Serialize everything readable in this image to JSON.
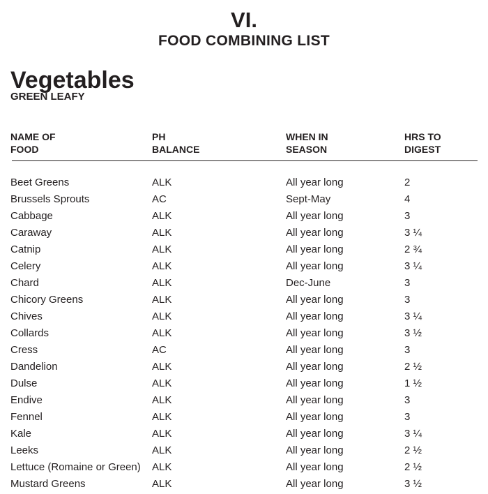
{
  "chapter": "VI.",
  "title": "FOOD COMBINING LIST",
  "section": "Vegetables",
  "subsection": "GREEN LEAFY",
  "columns": {
    "name": [
      "NAME OF",
      "FOOD"
    ],
    "ph": [
      "PH",
      "BALANCE"
    ],
    "season": [
      "WHEN IN",
      "SEASON"
    ],
    "digest": [
      "HRS TO",
      "DIGEST"
    ]
  },
  "rows": [
    {
      "name": "Beet Greens",
      "ph": "ALK",
      "season": "All year long",
      "digest": "2"
    },
    {
      "name": "Brussels Sprouts",
      "ph": "AC",
      "season": "Sept-May",
      "digest": "4"
    },
    {
      "name": "Cabbage",
      "ph": "ALK",
      "season": "All year long",
      "digest": "3"
    },
    {
      "name": "Caraway",
      "ph": "ALK",
      "season": "All year long",
      "digest": "3 ¼"
    },
    {
      "name": "Catnip",
      "ph": "ALK",
      "season": "All year long",
      "digest": "2 ¾"
    },
    {
      "name": "Celery",
      "ph": "ALK",
      "season": "All year long",
      "digest": "3 ¼"
    },
    {
      "name": "Chard",
      "ph": "ALK",
      "season": "Dec-June",
      "digest": "3"
    },
    {
      "name": "Chicory Greens",
      "ph": "ALK",
      "season": "All year long",
      "digest": "3"
    },
    {
      "name": "Chives",
      "ph": "ALK",
      "season": "All year long",
      "digest": "3 ¼"
    },
    {
      "name": "Collards",
      "ph": "ALK",
      "season": "All year long",
      "digest": "3 ½"
    },
    {
      "name": "Cress",
      "ph": "AC",
      "season": "All year long",
      "digest": "3"
    },
    {
      "name": "Dandelion",
      "ph": "ALK",
      "season": "All year long",
      "digest": "2 ½"
    },
    {
      "name": "Dulse",
      "ph": "ALK",
      "season": "All year long",
      "digest": "1 ½"
    },
    {
      "name": "Endive",
      "ph": "ALK",
      "season": "All year long",
      "digest": "3"
    },
    {
      "name": "Fennel",
      "ph": "ALK",
      "season": "All year long",
      "digest": "3"
    },
    {
      "name": "Kale",
      "ph": "ALK",
      "season": "All year long",
      "digest": "3 ¼"
    },
    {
      "name": "Leeks",
      "ph": "ALK",
      "season": "All year long",
      "digest": "2 ½"
    },
    {
      "name": "Lettuce (Romaine or Green)",
      "ph": "ALK",
      "season": "All year long",
      "digest": "2 ½"
    },
    {
      "name": "Mustard Greens",
      "ph": "ALK",
      "season": "All year long",
      "digest": "3 ½"
    }
  ]
}
